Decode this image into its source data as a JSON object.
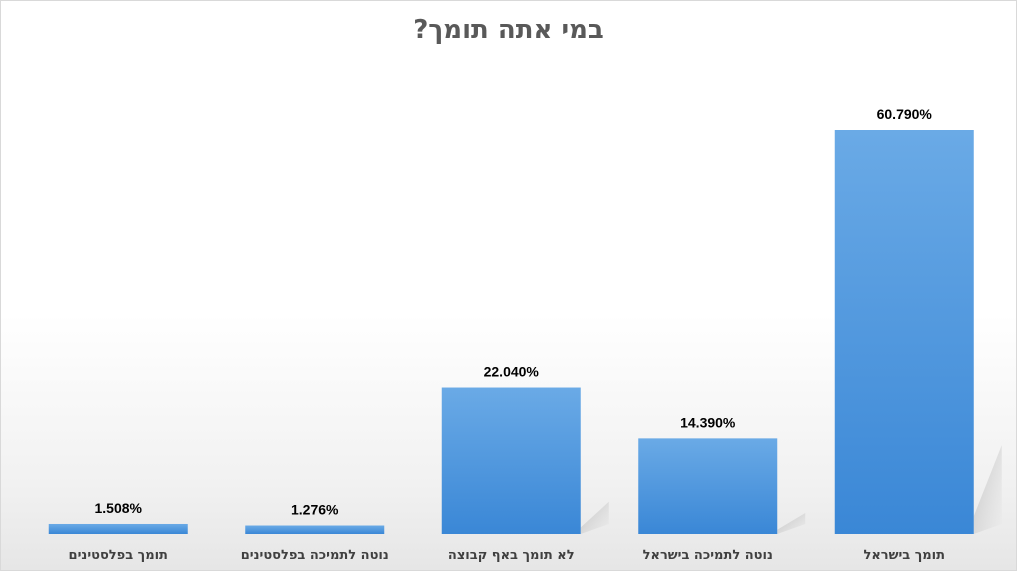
{
  "chart_data": {
    "type": "bar",
    "title": "במי אתה תומך?",
    "categories": [
      "תומך בפלסטינים",
      "נוטה לתמיכה בפלסטינים",
      "לא תומך באף קבוצה",
      "נוטה לתמיכה בישראל",
      "תומך בישראל"
    ],
    "values": [
      1.508,
      1.276,
      22.04,
      14.39,
      60.79
    ],
    "data_labels": [
      "1.508%",
      "1.276%",
      "22.040%",
      "14.390%",
      "60.790%"
    ],
    "xlabel": "",
    "ylabel": "",
    "ylim": [
      0,
      70
    ],
    "grid": false,
    "legend": "none",
    "colors": {
      "bar_top": "#6aaae6",
      "bar_bottom": "#3a87d6",
      "label": "#404040",
      "title": "#595959"
    }
  }
}
